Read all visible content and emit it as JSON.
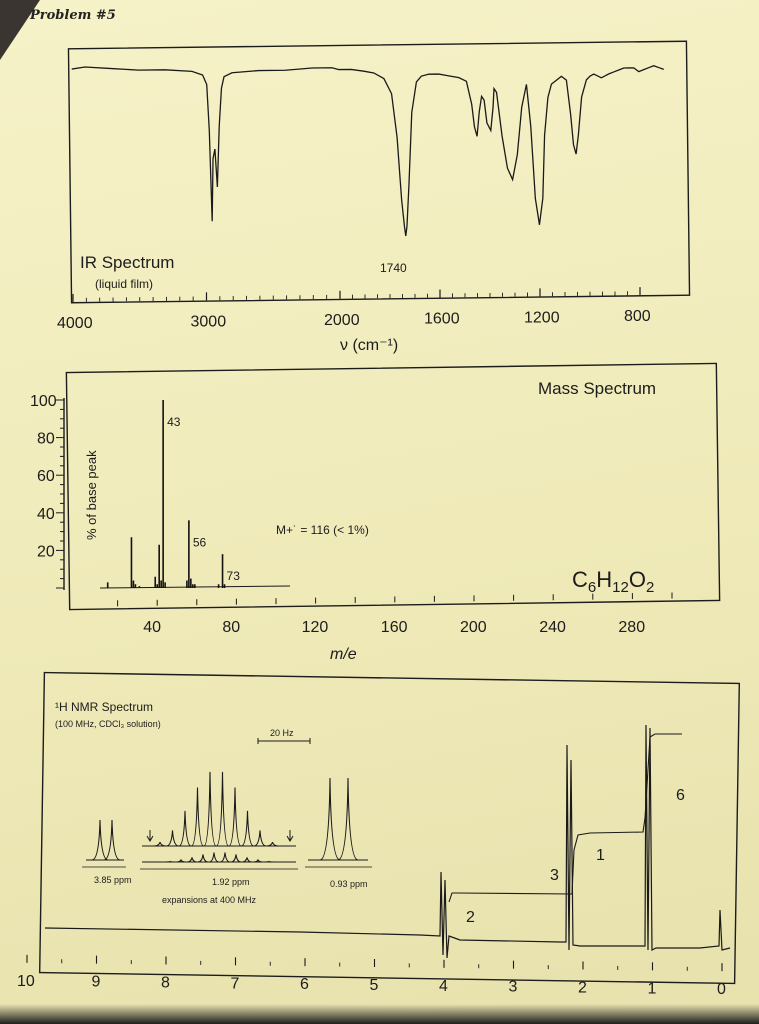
{
  "header": {
    "title": "Problem #5"
  },
  "chart_data": [
    {
      "type": "line",
      "title": "IR Spectrum",
      "subtitle": "(liquid film)",
      "xlabel": "ν (cm⁻¹)",
      "xlim": [
        4000,
        600
      ],
      "x_ticks": [
        "4000",
        "3000",
        "2000",
        "1600",
        "1200",
        "800"
      ],
      "annotations": [
        {
          "text": "1740",
          "x": 1740
        }
      ],
      "grid": false,
      "series": [
        {
          "x": [
            4000,
            3900,
            3700,
            3500,
            3300,
            3100,
            3020,
            2990,
            2975,
            2962,
            2950,
            2935,
            2920,
            2900,
            2880,
            2860,
            2800,
            2600,
            2400,
            2200,
            2050,
            2000,
            1950,
            1900,
            1860,
            1820,
            1790,
            1770,
            1755,
            1745,
            1740,
            1735,
            1725,
            1710,
            1690,
            1670,
            1640,
            1600,
            1560,
            1520,
            1490,
            1470,
            1460,
            1450,
            1440,
            1430,
            1420,
            1410,
            1395,
            1385,
            1380,
            1370,
            1350,
            1330,
            1310,
            1290,
            1270,
            1250,
            1235,
            1220,
            1205,
            1190,
            1180,
            1165,
            1150,
            1130,
            1110,
            1090,
            1075,
            1065,
            1055,
            1045,
            1030,
            1010,
            995,
            980,
            965,
            950,
            935,
            920,
            900,
            880,
            860,
            840,
            820,
            800,
            780,
            760,
            740,
            720,
            700
          ],
          "y": [
            93,
            94,
            93,
            92,
            92,
            91,
            89,
            84,
            60,
            12,
            45,
            50,
            30,
            62,
            82,
            88,
            90,
            91,
            91,
            92,
            92,
            91,
            91,
            90,
            89,
            86,
            78,
            55,
            22,
            8,
            3,
            8,
            30,
            68,
            84,
            87,
            88,
            88,
            87,
            86,
            84,
            72,
            60,
            55,
            68,
            76,
            74,
            62,
            58,
            70,
            80,
            78,
            55,
            38,
            32,
            45,
            70,
            82,
            60,
            22,
            8,
            22,
            55,
            75,
            82,
            84,
            86,
            84,
            66,
            50,
            45,
            55,
            75,
            84,
            86,
            87,
            86,
            85,
            86,
            87,
            88,
            89,
            90,
            90,
            90,
            88,
            89,
            90,
            91,
            90,
            89
          ]
        }
      ]
    },
    {
      "type": "bar",
      "title": "Mass Spectrum",
      "xlabel": "m/e",
      "ylabel": "% of base peak",
      "xlim": [
        0,
        300
      ],
      "ylim": [
        0,
        100
      ],
      "x_ticks": [
        "40",
        "80",
        "120",
        "160",
        "200",
        "240",
        "280"
      ],
      "y_ticks": [
        "20",
        "40",
        "60",
        "80",
        "100"
      ],
      "x": [
        15,
        27,
        28,
        29,
        31,
        39,
        40,
        41,
        42,
        43,
        44,
        55,
        56,
        57,
        58,
        59,
        71,
        73,
        74
      ],
      "values": [
        3,
        27,
        4,
        2,
        1,
        6,
        2,
        23,
        4,
        100,
        3,
        4,
        36,
        5,
        2,
        2,
        2,
        18,
        2
      ],
      "peak_labels": [
        {
          "text": "43",
          "x": 43
        },
        {
          "text": "56",
          "x": 56
        },
        {
          "text": "73",
          "x": 73
        }
      ],
      "annotations": [
        "M+˙ = 116 (< 1%)"
      ],
      "formula": {
        "c": "C",
        "c_n": "6",
        "h": "H",
        "h_n": "12",
        "o": "O",
        "o_n": "2"
      }
    },
    {
      "type": "line",
      "title": "¹H NMR Spectrum",
      "subtitle": "(100 MHz, CDCl₃ solution)",
      "xlim": [
        10,
        0
      ],
      "x_ticks": [
        "10",
        "9",
        "8",
        "7",
        "6",
        "5",
        "4",
        "3",
        "2",
        "1",
        "0"
      ],
      "integrations": [
        {
          "text": "2",
          "ppm": 3.85
        },
        {
          "text": "3",
          "ppm": 2.2
        },
        {
          "text": "1",
          "ppm": 1.6
        },
        {
          "text": "6",
          "ppm": 0.6
        }
      ],
      "expansions": {
        "labels": [
          "3.85 ppm",
          "1.92 ppm",
          "0.93 ppm"
        ],
        "note": "expansions at 400 MHz",
        "scale_bar": "20 Hz"
      }
    }
  ]
}
